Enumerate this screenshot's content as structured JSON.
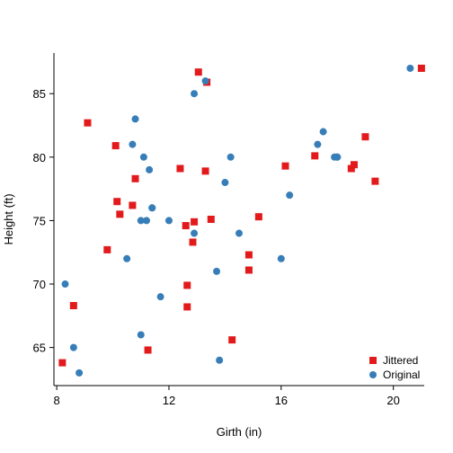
{
  "chart_data": {
    "type": "scatter",
    "xlabel": "Girth (in)",
    "ylabel": "Height (ft)",
    "xlim": [
      7.9,
      21.1
    ],
    "ylim": [
      62.0,
      88.2
    ],
    "xticks": [
      8,
      12,
      16,
      20
    ],
    "yticks": [
      65,
      70,
      75,
      80,
      85
    ],
    "grid": false,
    "legend_position": "bottom-right",
    "series": [
      {
        "name": "Jittered",
        "color": "#e31a1c",
        "marker": "square",
        "points": [
          {
            "x": 8.2,
            "y": 63.8
          },
          {
            "x": 8.6,
            "y": 68.3
          },
          {
            "x": 9.1,
            "y": 82.7
          },
          {
            "x": 9.8,
            "y": 72.7
          },
          {
            "x": 10.1,
            "y": 80.9
          },
          {
            "x": 10.15,
            "y": 76.5
          },
          {
            "x": 10.25,
            "y": 75.5
          },
          {
            "x": 10.7,
            "y": 76.2
          },
          {
            "x": 10.8,
            "y": 78.3
          },
          {
            "x": 11.25,
            "y": 64.8
          },
          {
            "x": 12.4,
            "y": 79.1
          },
          {
            "x": 12.6,
            "y": 74.6
          },
          {
            "x": 12.65,
            "y": 69.9
          },
          {
            "x": 12.65,
            "y": 68.2
          },
          {
            "x": 12.85,
            "y": 73.3
          },
          {
            "x": 12.9,
            "y": 74.9
          },
          {
            "x": 13.05,
            "y": 86.7
          },
          {
            "x": 13.3,
            "y": 78.9
          },
          {
            "x": 13.35,
            "y": 85.9
          },
          {
            "x": 13.5,
            "y": 75.1
          },
          {
            "x": 14.25,
            "y": 65.6
          },
          {
            "x": 14.85,
            "y": 72.3
          },
          {
            "x": 14.85,
            "y": 71.1
          },
          {
            "x": 15.2,
            "y": 75.3
          },
          {
            "x": 16.15,
            "y": 79.3
          },
          {
            "x": 17.2,
            "y": 80.1
          },
          {
            "x": 18.5,
            "y": 79.1
          },
          {
            "x": 18.6,
            "y": 79.4
          },
          {
            "x": 19.0,
            "y": 81.6
          },
          {
            "x": 19.35,
            "y": 78.1
          },
          {
            "x": 21.0,
            "y": 87.0
          }
        ]
      },
      {
        "name": "Original",
        "color": "#377eb8",
        "marker": "circle",
        "points": [
          {
            "x": 8.3,
            "y": 70
          },
          {
            "x": 8.6,
            "y": 65
          },
          {
            "x": 8.8,
            "y": 63
          },
          {
            "x": 10.5,
            "y": 72
          },
          {
            "x": 10.7,
            "y": 81
          },
          {
            "x": 10.8,
            "y": 83
          },
          {
            "x": 11.0,
            "y": 66
          },
          {
            "x": 11.0,
            "y": 75
          },
          {
            "x": 11.1,
            "y": 80
          },
          {
            "x": 11.2,
            "y": 75
          },
          {
            "x": 11.3,
            "y": 79
          },
          {
            "x": 11.4,
            "y": 76
          },
          {
            "x": 11.4,
            "y": 76
          },
          {
            "x": 11.7,
            "y": 69
          },
          {
            "x": 12.0,
            "y": 75
          },
          {
            "x": 12.9,
            "y": 74
          },
          {
            "x": 12.9,
            "y": 85
          },
          {
            "x": 13.3,
            "y": 86
          },
          {
            "x": 13.7,
            "y": 71
          },
          {
            "x": 13.8,
            "y": 64
          },
          {
            "x": 14.0,
            "y": 78
          },
          {
            "x": 14.2,
            "y": 80
          },
          {
            "x": 14.5,
            "y": 74
          },
          {
            "x": 16.0,
            "y": 72
          },
          {
            "x": 16.3,
            "y": 77
          },
          {
            "x": 17.3,
            "y": 81
          },
          {
            "x": 17.5,
            "y": 82
          },
          {
            "x": 17.9,
            "y": 80
          },
          {
            "x": 18.0,
            "y": 80
          },
          {
            "x": 18.0,
            "y": 80
          },
          {
            "x": 20.6,
            "y": 87
          }
        ]
      }
    ]
  }
}
